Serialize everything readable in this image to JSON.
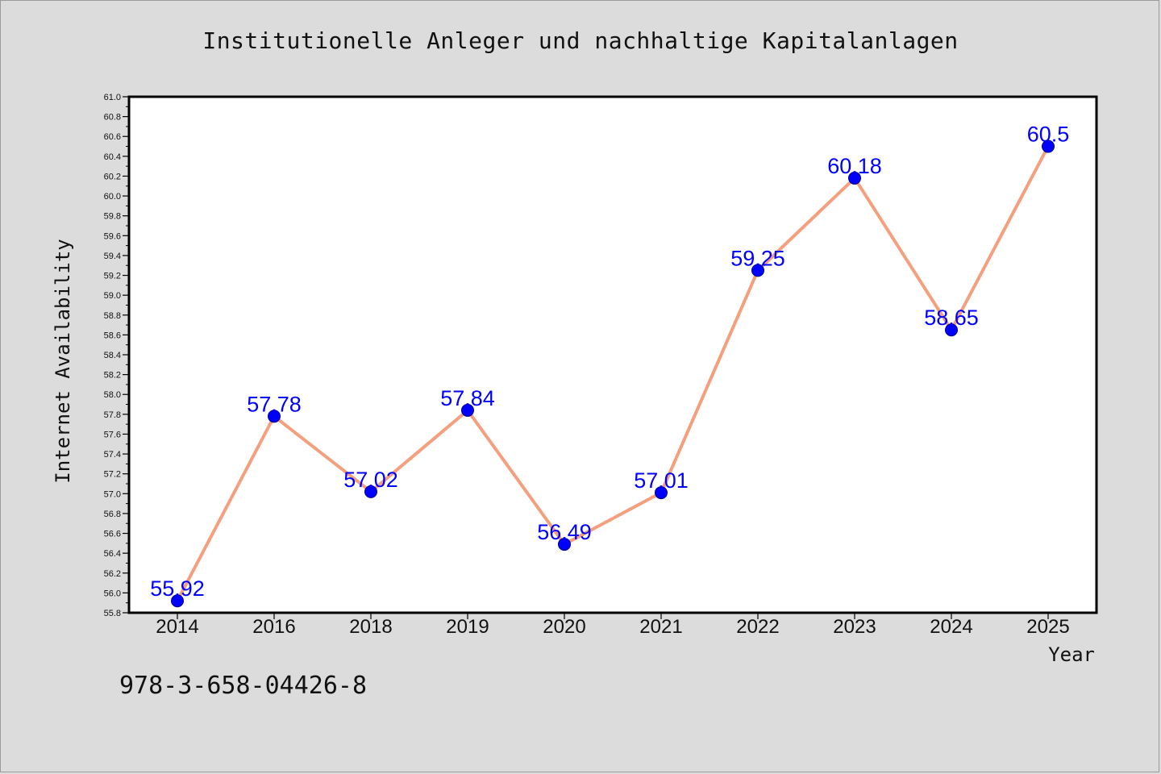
{
  "chart_data": {
    "type": "line",
    "title": "Institutionelle Anleger und nachhaltige Kapitalanlagen",
    "xlabel": "Year",
    "ylabel": "Internet Availability",
    "categories": [
      "2014",
      "2016",
      "2018",
      "2019",
      "2020",
      "2021",
      "2022",
      "2023",
      "2024",
      "2025"
    ],
    "series": [
      {
        "values": [
          55.92,
          57.78,
          57.02,
          57.84,
          56.49,
          57.01,
          59.25,
          60.18,
          58.65,
          60.5
        ],
        "labels": [
          "55.92",
          "57.78",
          "57.02",
          "57.84",
          "56.49",
          "57.01",
          "59.25",
          "60.18",
          "58.65",
          "60.5"
        ],
        "line_color": "#f4a07e",
        "marker_color": "#0000ff"
      }
    ],
    "ylim": [
      55.8,
      61.0
    ],
    "y_tick_step": 0.2,
    "grid": false,
    "legend": "none"
  },
  "footer_text": "978-3-658-04426-8",
  "colors": {
    "background": "#dcdcdc",
    "plot_background": "#ffffff",
    "axis": "#000000",
    "data_label": "#0000ff",
    "text": "#111111"
  }
}
